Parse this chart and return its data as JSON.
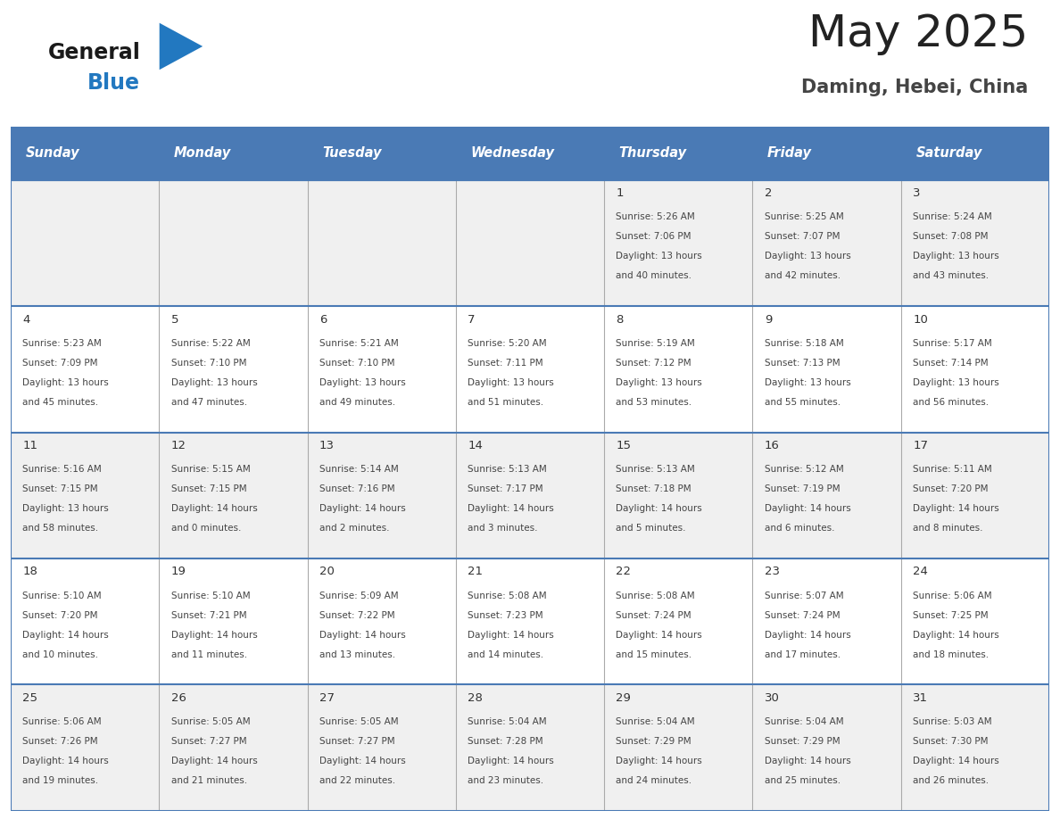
{
  "title": "May 2025",
  "subtitle": "Daming, Hebei, China",
  "days_of_week": [
    "Sunday",
    "Monday",
    "Tuesday",
    "Wednesday",
    "Thursday",
    "Friday",
    "Saturday"
  ],
  "header_bg": "#4a7ab5",
  "header_text_color": "#ffffff",
  "row_bg_light": "#f0f0f0",
  "row_bg_white": "#ffffff",
  "cell_text_color": "#444444",
  "day_num_color": "#333333",
  "border_color": "#4a7ab5",
  "sep_color": "#aaaaaa",
  "title_color": "#222222",
  "subtitle_color": "#444444",
  "logo_general_color": "#1a1a1a",
  "logo_blue_color": "#2278c0",
  "calendar_data": [
    [
      null,
      null,
      null,
      null,
      {
        "day": 1,
        "sunrise": "5:26 AM",
        "sunset": "7:06 PM",
        "daylight_h": "13 hours",
        "daylight_m": "and 40 minutes."
      },
      {
        "day": 2,
        "sunrise": "5:25 AM",
        "sunset": "7:07 PM",
        "daylight_h": "13 hours",
        "daylight_m": "and 42 minutes."
      },
      {
        "day": 3,
        "sunrise": "5:24 AM",
        "sunset": "7:08 PM",
        "daylight_h": "13 hours",
        "daylight_m": "and 43 minutes."
      }
    ],
    [
      {
        "day": 4,
        "sunrise": "5:23 AM",
        "sunset": "7:09 PM",
        "daylight_h": "13 hours",
        "daylight_m": "and 45 minutes."
      },
      {
        "day": 5,
        "sunrise": "5:22 AM",
        "sunset": "7:10 PM",
        "daylight_h": "13 hours",
        "daylight_m": "and 47 minutes."
      },
      {
        "day": 6,
        "sunrise": "5:21 AM",
        "sunset": "7:10 PM",
        "daylight_h": "13 hours",
        "daylight_m": "and 49 minutes."
      },
      {
        "day": 7,
        "sunrise": "5:20 AM",
        "sunset": "7:11 PM",
        "daylight_h": "13 hours",
        "daylight_m": "and 51 minutes."
      },
      {
        "day": 8,
        "sunrise": "5:19 AM",
        "sunset": "7:12 PM",
        "daylight_h": "13 hours",
        "daylight_m": "and 53 minutes."
      },
      {
        "day": 9,
        "sunrise": "5:18 AM",
        "sunset": "7:13 PM",
        "daylight_h": "13 hours",
        "daylight_m": "and 55 minutes."
      },
      {
        "day": 10,
        "sunrise": "5:17 AM",
        "sunset": "7:14 PM",
        "daylight_h": "13 hours",
        "daylight_m": "and 56 minutes."
      }
    ],
    [
      {
        "day": 11,
        "sunrise": "5:16 AM",
        "sunset": "7:15 PM",
        "daylight_h": "13 hours",
        "daylight_m": "and 58 minutes."
      },
      {
        "day": 12,
        "sunrise": "5:15 AM",
        "sunset": "7:15 PM",
        "daylight_h": "14 hours",
        "daylight_m": "and 0 minutes."
      },
      {
        "day": 13,
        "sunrise": "5:14 AM",
        "sunset": "7:16 PM",
        "daylight_h": "14 hours",
        "daylight_m": "and 2 minutes."
      },
      {
        "day": 14,
        "sunrise": "5:13 AM",
        "sunset": "7:17 PM",
        "daylight_h": "14 hours",
        "daylight_m": "and 3 minutes."
      },
      {
        "day": 15,
        "sunrise": "5:13 AM",
        "sunset": "7:18 PM",
        "daylight_h": "14 hours",
        "daylight_m": "and 5 minutes."
      },
      {
        "day": 16,
        "sunrise": "5:12 AM",
        "sunset": "7:19 PM",
        "daylight_h": "14 hours",
        "daylight_m": "and 6 minutes."
      },
      {
        "day": 17,
        "sunrise": "5:11 AM",
        "sunset": "7:20 PM",
        "daylight_h": "14 hours",
        "daylight_m": "and 8 minutes."
      }
    ],
    [
      {
        "day": 18,
        "sunrise": "5:10 AM",
        "sunset": "7:20 PM",
        "daylight_h": "14 hours",
        "daylight_m": "and 10 minutes."
      },
      {
        "day": 19,
        "sunrise": "5:10 AM",
        "sunset": "7:21 PM",
        "daylight_h": "14 hours",
        "daylight_m": "and 11 minutes."
      },
      {
        "day": 20,
        "sunrise": "5:09 AM",
        "sunset": "7:22 PM",
        "daylight_h": "14 hours",
        "daylight_m": "and 13 minutes."
      },
      {
        "day": 21,
        "sunrise": "5:08 AM",
        "sunset": "7:23 PM",
        "daylight_h": "14 hours",
        "daylight_m": "and 14 minutes."
      },
      {
        "day": 22,
        "sunrise": "5:08 AM",
        "sunset": "7:24 PM",
        "daylight_h": "14 hours",
        "daylight_m": "and 15 minutes."
      },
      {
        "day": 23,
        "sunrise": "5:07 AM",
        "sunset": "7:24 PM",
        "daylight_h": "14 hours",
        "daylight_m": "and 17 minutes."
      },
      {
        "day": 24,
        "sunrise": "5:06 AM",
        "sunset": "7:25 PM",
        "daylight_h": "14 hours",
        "daylight_m": "and 18 minutes."
      }
    ],
    [
      {
        "day": 25,
        "sunrise": "5:06 AM",
        "sunset": "7:26 PM",
        "daylight_h": "14 hours",
        "daylight_m": "and 19 minutes."
      },
      {
        "day": 26,
        "sunrise": "5:05 AM",
        "sunset": "7:27 PM",
        "daylight_h": "14 hours",
        "daylight_m": "and 21 minutes."
      },
      {
        "day": 27,
        "sunrise": "5:05 AM",
        "sunset": "7:27 PM",
        "daylight_h": "14 hours",
        "daylight_m": "and 22 minutes."
      },
      {
        "day": 28,
        "sunrise": "5:04 AM",
        "sunset": "7:28 PM",
        "daylight_h": "14 hours",
        "daylight_m": "and 23 minutes."
      },
      {
        "day": 29,
        "sunrise": "5:04 AM",
        "sunset": "7:29 PM",
        "daylight_h": "14 hours",
        "daylight_m": "and 24 minutes."
      },
      {
        "day": 30,
        "sunrise": "5:04 AM",
        "sunset": "7:29 PM",
        "daylight_h": "14 hours",
        "daylight_m": "and 25 minutes."
      },
      {
        "day": 31,
        "sunrise": "5:03 AM",
        "sunset": "7:30 PM",
        "daylight_h": "14 hours",
        "daylight_m": "and 26 minutes."
      }
    ]
  ]
}
